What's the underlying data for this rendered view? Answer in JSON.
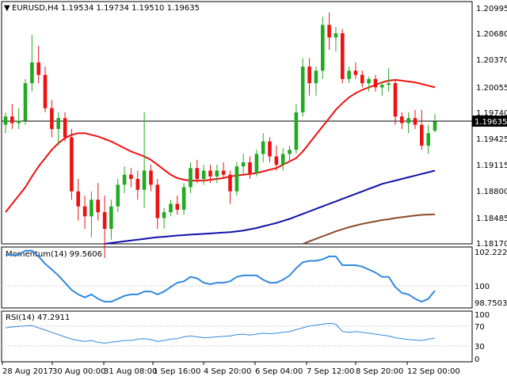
{
  "header": {
    "symbol": "EURUSD,H4",
    "quote": "1.19534 1.19734 1.19510 1.19635"
  },
  "colors": {
    "bull": "#22aa22",
    "bear": "#ee1111",
    "ma_fast": "#ee1111",
    "ma_mid": "#1111aa",
    "ma_slow": "#8b4a2a",
    "momentum": "#3388dd",
    "rsi": "#3388dd",
    "price_line": "#000000",
    "price_tag_bg": "#000000",
    "price_tag_text": "#ffffff"
  },
  "price_panel": {
    "y_ticks": [
      "1.20995",
      "1.20680",
      "1.20370",
      "1.20055",
      "1.19740",
      "1.19425",
      "1.19115",
      "1.18800",
      "1.18485",
      "1.18170"
    ],
    "current_price": "1.19635"
  },
  "momentum_panel": {
    "label": "Momentum(14) 99.5606",
    "y_ticks": [
      "102.2221",
      "100",
      "98.7503"
    ]
  },
  "rsi_panel": {
    "label": "RSI(14) 47.2911",
    "y_ticks": [
      "100",
      "70",
      "30",
      "0"
    ]
  },
  "x_axis": {
    "labels": [
      "28 Aug 2017",
      "30 Aug 00:00",
      "31 Aug 08:00",
      "1 Sep 16:00",
      "4 Sep 20:00",
      "6 Sep 04:00",
      "7 Sep 12:00",
      "8 Sep 20:00",
      "12 Sep 00:00"
    ]
  },
  "chart_data": {
    "type": "candlestick",
    "instrument": "EURUSD",
    "timeframe": "H4",
    "ylim": [
      1.1817,
      1.2106
    ],
    "candles": [
      {
        "o": 1.196,
        "h": 1.1975,
        "l": 1.195,
        "c": 1.197
      },
      {
        "o": 1.197,
        "h": 1.1985,
        "l": 1.1955,
        "c": 1.1962
      },
      {
        "o": 1.1962,
        "h": 1.198,
        "l": 1.1955,
        "c": 1.1965
      },
      {
        "o": 1.1965,
        "h": 1.2015,
        "l": 1.196,
        "c": 1.201
      },
      {
        "o": 1.201,
        "h": 1.2068,
        "l": 1.2,
        "c": 1.2035
      },
      {
        "o": 1.2035,
        "h": 1.2055,
        "l": 1.201,
        "c": 1.202
      },
      {
        "o": 1.202,
        "h": 1.203,
        "l": 1.1975,
        "c": 1.198
      },
      {
        "o": 1.198,
        "h": 1.199,
        "l": 1.1945,
        "c": 1.1955
      },
      {
        "o": 1.1955,
        "h": 1.1975,
        "l": 1.1935,
        "c": 1.1968
      },
      {
        "o": 1.1968,
        "h": 1.1975,
        "l": 1.194,
        "c": 1.1945
      },
      {
        "o": 1.1945,
        "h": 1.1955,
        "l": 1.187,
        "c": 1.188
      },
      {
        "o": 1.188,
        "h": 1.1895,
        "l": 1.1845,
        "c": 1.1862
      },
      {
        "o": 1.1862,
        "h": 1.1875,
        "l": 1.1835,
        "c": 1.185
      },
      {
        "o": 1.185,
        "h": 1.188,
        "l": 1.1825,
        "c": 1.187
      },
      {
        "o": 1.187,
        "h": 1.189,
        "l": 1.1845,
        "c": 1.1855
      },
      {
        "o": 1.1855,
        "h": 1.1875,
        "l": 1.18,
        "c": 1.1835
      },
      {
        "o": 1.1835,
        "h": 1.187,
        "l": 1.1822,
        "c": 1.1862
      },
      {
        "o": 1.1862,
        "h": 1.1895,
        "l": 1.1855,
        "c": 1.1888
      },
      {
        "o": 1.1888,
        "h": 1.191,
        "l": 1.1878,
        "c": 1.19
      },
      {
        "o": 1.19,
        "h": 1.1908,
        "l": 1.1885,
        "c": 1.1895
      },
      {
        "o": 1.1895,
        "h": 1.1905,
        "l": 1.187,
        "c": 1.1882
      },
      {
        "o": 1.1882,
        "h": 1.1975,
        "l": 1.186,
        "c": 1.1905
      },
      {
        "o": 1.1905,
        "h": 1.1912,
        "l": 1.188,
        "c": 1.1888
      },
      {
        "o": 1.1888,
        "h": 1.1895,
        "l": 1.1835,
        "c": 1.1848
      },
      {
        "o": 1.1848,
        "h": 1.186,
        "l": 1.1835,
        "c": 1.1855
      },
      {
        "o": 1.1855,
        "h": 1.187,
        "l": 1.185,
        "c": 1.1865
      },
      {
        "o": 1.1865,
        "h": 1.1875,
        "l": 1.1852,
        "c": 1.1858
      },
      {
        "o": 1.1858,
        "h": 1.189,
        "l": 1.1852,
        "c": 1.1885
      },
      {
        "o": 1.1885,
        "h": 1.1915,
        "l": 1.1878,
        "c": 1.1908
      },
      {
        "o": 1.1908,
        "h": 1.1918,
        "l": 1.189,
        "c": 1.1895
      },
      {
        "o": 1.1895,
        "h": 1.1912,
        "l": 1.1888,
        "c": 1.1905
      },
      {
        "o": 1.1905,
        "h": 1.1912,
        "l": 1.189,
        "c": 1.1898
      },
      {
        "o": 1.1898,
        "h": 1.1912,
        "l": 1.189,
        "c": 1.1905
      },
      {
        "o": 1.1905,
        "h": 1.1915,
        "l": 1.1895,
        "c": 1.19
      },
      {
        "o": 1.19,
        "h": 1.1905,
        "l": 1.1865,
        "c": 1.188
      },
      {
        "o": 1.188,
        "h": 1.1915,
        "l": 1.1875,
        "c": 1.191
      },
      {
        "o": 1.191,
        "h": 1.1925,
        "l": 1.19,
        "c": 1.1915
      },
      {
        "o": 1.1915,
        "h": 1.1922,
        "l": 1.1895,
        "c": 1.1902
      },
      {
        "o": 1.1902,
        "h": 1.193,
        "l": 1.1898,
        "c": 1.1925
      },
      {
        "o": 1.1925,
        "h": 1.195,
        "l": 1.1915,
        "c": 1.194
      },
      {
        "o": 1.194,
        "h": 1.1945,
        "l": 1.1915,
        "c": 1.1922
      },
      {
        "o": 1.1922,
        "h": 1.1935,
        "l": 1.1905,
        "c": 1.1912
      },
      {
        "o": 1.1912,
        "h": 1.1932,
        "l": 1.1905,
        "c": 1.1925
      },
      {
        "o": 1.1925,
        "h": 1.1935,
        "l": 1.1915,
        "c": 1.193
      },
      {
        "o": 1.193,
        "h": 1.1985,
        "l": 1.1925,
        "c": 1.1975
      },
      {
        "o": 1.1975,
        "h": 1.204,
        "l": 1.197,
        "c": 1.203
      },
      {
        "o": 1.203,
        "h": 1.204,
        "l": 1.1995,
        "c": 1.201
      },
      {
        "o": 1.201,
        "h": 1.203,
        "l": 1.1995,
        "c": 1.2025
      },
      {
        "o": 1.2025,
        "h": 1.209,
        "l": 1.2015,
        "c": 1.208
      },
      {
        "o": 1.208,
        "h": 1.2095,
        "l": 1.205,
        "c": 1.2065
      },
      {
        "o": 1.2065,
        "h": 1.2078,
        "l": 1.2048,
        "c": 1.207
      },
      {
        "o": 1.207,
        "h": 1.2075,
        "l": 1.201,
        "c": 1.2015
      },
      {
        "o": 1.2015,
        "h": 1.203,
        "l": 1.201,
        "c": 1.2025
      },
      {
        "o": 1.2025,
        "h": 1.2035,
        "l": 1.2015,
        "c": 1.202
      },
      {
        "o": 1.202,
        "h": 1.2025,
        "l": 1.2005,
        "c": 1.201
      },
      {
        "o": 1.201,
        "h": 1.2018,
        "l": 1.2,
        "c": 1.2015
      },
      {
        "o": 1.2015,
        "h": 1.202,
        "l": 1.2,
        "c": 1.2005
      },
      {
        "o": 1.2005,
        "h": 1.2012,
        "l": 1.1995,
        "c": 1.2008
      },
      {
        "o": 1.2008,
        "h": 1.2028,
        "l": 1.2,
        "c": 1.201
      },
      {
        "o": 1.201,
        "h": 1.2015,
        "l": 1.196,
        "c": 1.197
      },
      {
        "o": 1.197,
        "h": 1.1975,
        "l": 1.1955,
        "c": 1.1962
      },
      {
        "o": 1.1962,
        "h": 1.1975,
        "l": 1.195,
        "c": 1.1968
      },
      {
        "o": 1.1968,
        "h": 1.1978,
        "l": 1.1955,
        "c": 1.196
      },
      {
        "o": 1.196,
        "h": 1.1978,
        "l": 1.193,
        "c": 1.1935
      },
      {
        "o": 1.1935,
        "h": 1.196,
        "l": 1.1925,
        "c": 1.195
      },
      {
        "o": 1.1953,
        "h": 1.1973,
        "l": 1.1951,
        "c": 1.1964
      }
    ],
    "series": [
      {
        "name": "MA fast",
        "values": [
          1.1855,
          1.1865,
          1.1875,
          1.1885,
          1.1898,
          1.191,
          1.192,
          1.193,
          1.1938,
          1.1944,
          1.1948,
          1.195,
          1.195,
          1.1948,
          1.1946,
          1.1943,
          1.194,
          1.1936,
          1.1932,
          1.1928,
          1.1925,
          1.1922,
          1.1918,
          1.1912,
          1.1906,
          1.19,
          1.1896,
          1.1894,
          1.1893,
          1.1893,
          1.1893,
          1.1894,
          1.1895,
          1.1896,
          1.1898,
          1.1899,
          1.19,
          1.1901,
          1.1902,
          1.1904,
          1.1906,
          1.1908,
          1.1912,
          1.1916,
          1.192,
          1.1928,
          1.1938,
          1.1948,
          1.1958,
          1.1968,
          1.1978,
          1.1986,
          1.1993,
          1.1998,
          1.2002,
          1.2005,
          1.2008,
          1.2011,
          1.2013,
          1.2014,
          1.2013,
          1.2012,
          1.2011,
          1.2009,
          1.2007,
          1.2005
        ]
      },
      {
        "name": "MA mid",
        "values": [
          null,
          null,
          null,
          null,
          null,
          null,
          null,
          null,
          null,
          null,
          null,
          null,
          null,
          null,
          null,
          1.1817,
          1.1818,
          1.1819,
          1.182,
          1.1821,
          1.1822,
          1.1823,
          1.1824,
          1.1825,
          1.18255,
          1.18262,
          1.1827,
          1.18275,
          1.1828,
          1.18285,
          1.1829,
          1.18295,
          1.183,
          1.18305,
          1.1831,
          1.1832,
          1.1833,
          1.18345,
          1.1836,
          1.1838,
          1.184,
          1.1842,
          1.18445,
          1.1847,
          1.185,
          1.1853,
          1.1856,
          1.1859,
          1.1862,
          1.1865,
          1.1868,
          1.1871,
          1.1874,
          1.1877,
          1.188,
          1.1883,
          1.1886,
          1.1889,
          1.1891,
          1.1893,
          1.1895,
          1.1897,
          1.1899,
          1.1901,
          1.1903,
          1.1905
        ]
      },
      {
        "name": "MA slow",
        "values": [
          null,
          null,
          null,
          null,
          null,
          null,
          null,
          null,
          null,
          null,
          null,
          null,
          null,
          null,
          null,
          null,
          null,
          null,
          null,
          null,
          null,
          null,
          null,
          null,
          null,
          null,
          null,
          null,
          null,
          null,
          null,
          null,
          null,
          null,
          null,
          null,
          null,
          null,
          null,
          null,
          null,
          null,
          null,
          null,
          null,
          1.1817,
          1.182,
          1.1823,
          1.1826,
          1.1829,
          1.1832,
          1.18345,
          1.1837,
          1.1839,
          1.1841,
          1.18425,
          1.1844,
          1.18455,
          1.18465,
          1.1848,
          1.1849,
          1.185,
          1.1851,
          1.18518,
          1.18522,
          1.18525
        ]
      }
    ],
    "momentum": {
      "ylim": [
        98.7,
        102.4
      ],
      "values": [
        102.0,
        102.0,
        102.0,
        102.3,
        102.3,
        101.9,
        101.4,
        101.0,
        100.6,
        100.1,
        99.6,
        99.3,
        99.1,
        99.3,
        99.0,
        98.8,
        98.8,
        99.0,
        99.2,
        99.3,
        99.3,
        99.5,
        99.5,
        99.3,
        99.5,
        99.8,
        100.1,
        100.2,
        100.5,
        100.4,
        100.1,
        100.0,
        100.1,
        100.1,
        100.2,
        100.5,
        100.6,
        100.6,
        100.6,
        100.3,
        100.1,
        100.1,
        100.3,
        100.6,
        101.1,
        101.5,
        101.6,
        101.6,
        101.7,
        101.9,
        101.9,
        101.3,
        101.3,
        101.3,
        101.2,
        101.0,
        100.8,
        100.5,
        100.5,
        99.8,
        99.4,
        99.3,
        99.0,
        98.8,
        99.0,
        99.56
      ]
    },
    "rsi": {
      "ylim": [
        0,
        100
      ],
      "values": [
        70,
        72,
        73,
        74,
        75,
        70,
        65,
        60,
        55,
        50,
        45,
        42,
        40,
        42,
        38,
        36,
        38,
        40,
        42,
        42,
        45,
        46,
        44,
        40,
        42,
        45,
        46,
        50,
        52,
        50,
        48,
        49,
        50,
        51,
        52,
        55,
        56,
        54,
        56,
        58,
        57,
        58,
        60,
        62,
        66,
        70,
        74,
        76,
        78,
        80,
        78,
        62,
        60,
        62,
        60,
        58,
        56,
        54,
        52,
        48,
        46,
        44,
        43,
        42,
        45,
        47.29
      ]
    },
    "rsi_levels": [
      70,
      30
    ]
  }
}
